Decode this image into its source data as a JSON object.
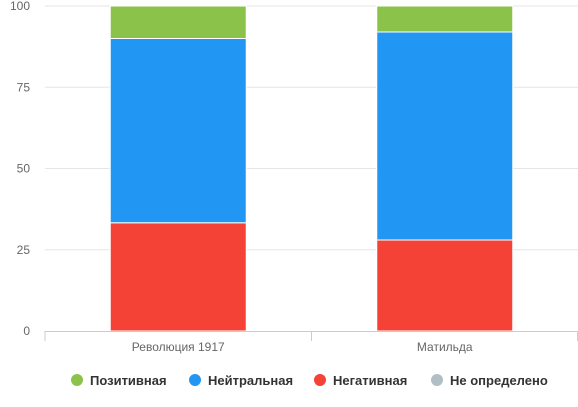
{
  "chart_data": {
    "type": "bar",
    "stacked": true,
    "categories": [
      "Революция 1917",
      "Матильда"
    ],
    "series": [
      {
        "name": "Позитивная",
        "color": "#8bc34a",
        "values": [
          10,
          8
        ]
      },
      {
        "name": "Нейтральная",
        "color": "#2196f3",
        "values": [
          56.7,
          64
        ]
      },
      {
        "name": "Негативная",
        "color": "#f44336",
        "values": [
          33.3,
          28
        ]
      },
      {
        "name": "Не определено",
        "color": "#b0bec5",
        "values": [
          0,
          0
        ]
      }
    ],
    "stack_order_bottom_to_top": [
      "Негативная",
      "Нейтральная",
      "Позитивная",
      "Не определено"
    ],
    "ylim": [
      0,
      100
    ],
    "yticks": [
      0,
      25,
      50,
      75,
      100
    ],
    "grid": true,
    "legend_position": "bottom"
  }
}
